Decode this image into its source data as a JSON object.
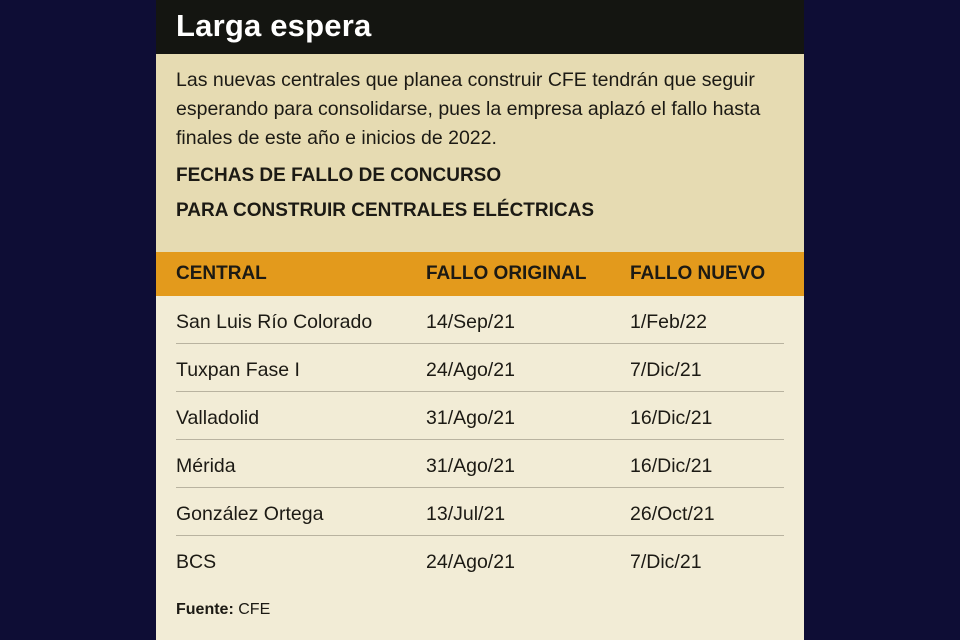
{
  "header": {
    "title": "Larga espera"
  },
  "intro": {
    "text": "Las nuevas centrales que planea construir CFE tendrán que seguir esperando para consolidarse, pues la empresa aplazó el fallo hasta finales de este año e inicios de 2022."
  },
  "subtitle": {
    "line1": "FECHAS DE FALLO DE CONCURSO",
    "line2": "PARA CONSTRUIR CENTRALES ELÉCTRICAS"
  },
  "table": {
    "headers": [
      "CENTRAL",
      "FALLO ORIGINAL",
      "FALLO NUEVO"
    ],
    "rows": [
      [
        "San Luis Río Colorado",
        "14/Sep/21",
        "1/Feb/22"
      ],
      [
        "Tuxpan Fase I",
        "24/Ago/21",
        "7/Dic/21"
      ],
      [
        "Valladolid",
        "31/Ago/21",
        "16/Dic/21"
      ],
      [
        "Mérida",
        "31/Ago/21",
        "16/Dic/21"
      ],
      [
        "González Ortega",
        "13/Jul/21",
        "26/Oct/21"
      ],
      [
        "BCS",
        "24/Ago/21",
        "7/Dic/21"
      ]
    ]
  },
  "source": {
    "label": "Fuente:",
    "value": "CFE"
  },
  "colors": {
    "background": "#0e0d35",
    "title_bar": "#141511",
    "intro_block": "#e6dbb2",
    "table_header": "#e39a1c",
    "table_body": "#f2ecd6"
  }
}
